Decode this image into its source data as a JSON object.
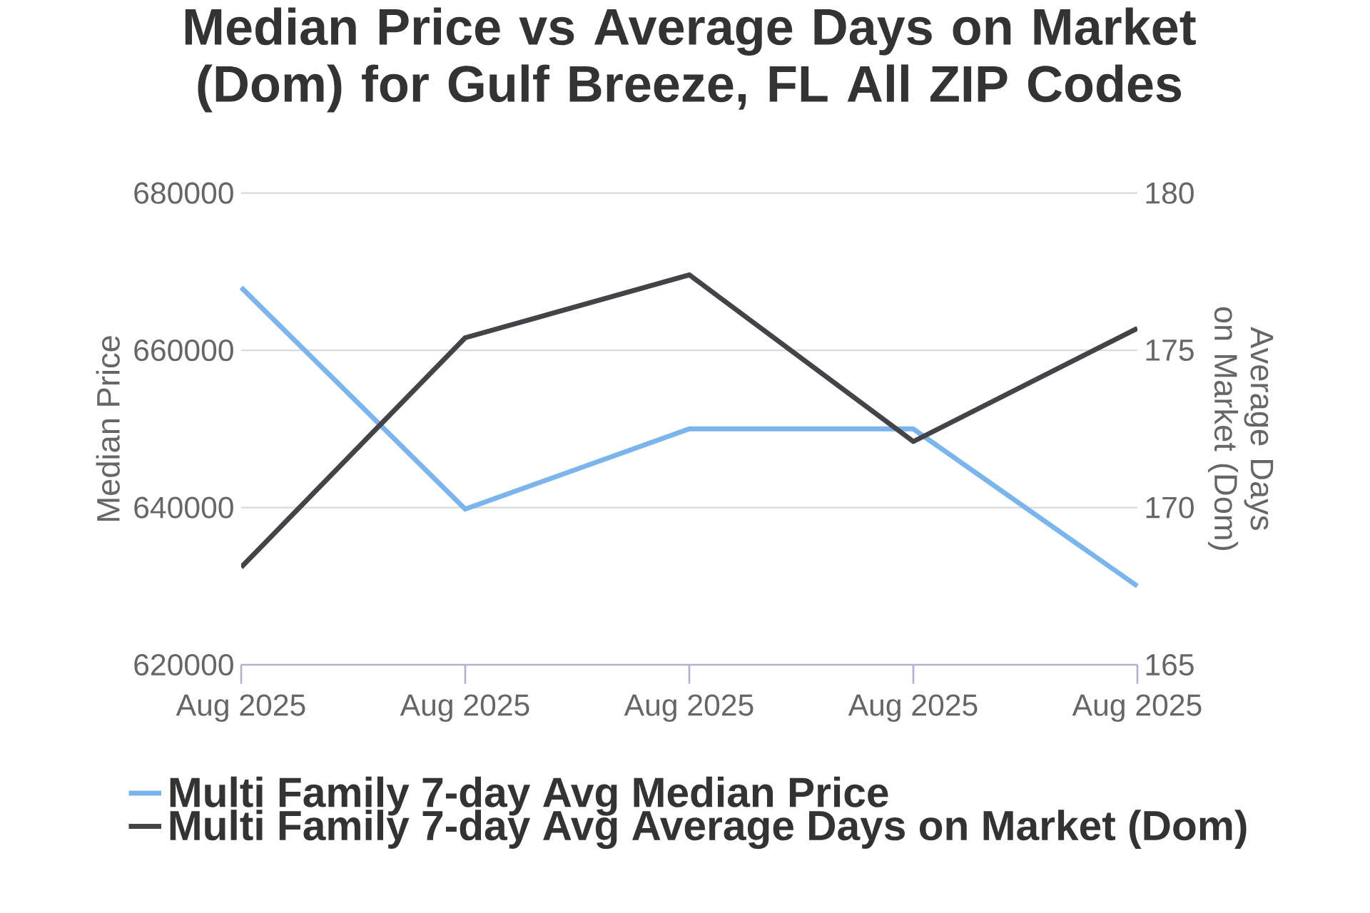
{
  "chart_data": {
    "type": "line",
    "title": "Median Price vs Average Days on Market (Dom) for Gulf Breeze, FL All ZIP Codes",
    "ylabel": "Median Price",
    "y2label": "Average Days on Market (Dom)",
    "categories": [
      "Aug 2025",
      "Aug 2025",
      "Aug 2025",
      "Aug 2025",
      "Aug 2025"
    ],
    "series": [
      {
        "name": "Multi Family 7-day Avg Median Price",
        "color": "#7cb5ec",
        "values": [
          668000,
          639800,
          650000,
          650000,
          630000
        ]
      },
      {
        "name": "Multi Family 7-day Avg Average Days on Market (Dom)",
        "color": "#434348",
        "axis": "y2",
        "values": [
          168.1,
          175.4,
          177.4,
          172.1,
          175.7
        ]
      }
    ],
    "ylim": [
      620000,
      680000
    ],
    "yticks": [
      620000,
      640000,
      660000,
      680000
    ],
    "y2lim": [
      165,
      180
    ],
    "y2ticks": [
      165,
      170,
      175,
      180
    ],
    "grid": "y",
    "legend": "bottom"
  }
}
